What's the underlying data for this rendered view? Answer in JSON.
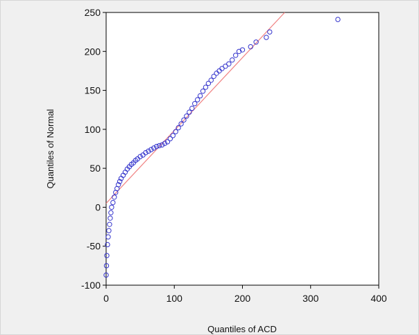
{
  "chart_data": {
    "type": "scatter",
    "title": "",
    "xlabel": "Quantiles of ACD",
    "ylabel": "Quantiles of Normal",
    "xlim": [
      0,
      400
    ],
    "ylim": [
      -100,
      250
    ],
    "xticks": [
      "0",
      "100",
      "200",
      "300",
      "400"
    ],
    "yticks": [
      "-100",
      "-50",
      "0",
      "50",
      "100",
      "150",
      "200",
      "250"
    ],
    "grid": false,
    "reference_line": {
      "x": [
        0,
        262
      ],
      "y": [
        5,
        250
      ],
      "color": "#f08080"
    },
    "marker_color": "#3333cc",
    "points": [
      [
        0,
        -87
      ],
      [
        0.5,
        -75
      ],
      [
        1,
        -62
      ],
      [
        2,
        -48
      ],
      [
        3,
        -38
      ],
      [
        4,
        -30
      ],
      [
        5,
        -22
      ],
      [
        6,
        -14
      ],
      [
        7,
        -7
      ],
      [
        8,
        0
      ],
      [
        10,
        6
      ],
      [
        12,
        13
      ],
      [
        14,
        19
      ],
      [
        16,
        24
      ],
      [
        18,
        29
      ],
      [
        20,
        33
      ],
      [
        22,
        37
      ],
      [
        25,
        41
      ],
      [
        28,
        45
      ],
      [
        31,
        49
      ],
      [
        34,
        52
      ],
      [
        37,
        55
      ],
      [
        40,
        57
      ],
      [
        43,
        60
      ],
      [
        46,
        62
      ],
      [
        50,
        65
      ],
      [
        54,
        67
      ],
      [
        58,
        70
      ],
      [
        62,
        72
      ],
      [
        66,
        74
      ],
      [
        70,
        76
      ],
      [
        74,
        78
      ],
      [
        78,
        79
      ],
      [
        82,
        80
      ],
      [
        86,
        82
      ],
      [
        90,
        84
      ],
      [
        94,
        88
      ],
      [
        98,
        92
      ],
      [
        102,
        97
      ],
      [
        106,
        102
      ],
      [
        110,
        107
      ],
      [
        114,
        112
      ],
      [
        118,
        117
      ],
      [
        122,
        122
      ],
      [
        126,
        127
      ],
      [
        130,
        133
      ],
      [
        134,
        138
      ],
      [
        138,
        143
      ],
      [
        142,
        149
      ],
      [
        146,
        154
      ],
      [
        150,
        159
      ],
      [
        154,
        163
      ],
      [
        158,
        168
      ],
      [
        162,
        172
      ],
      [
        166,
        175
      ],
      [
        170,
        178
      ],
      [
        175,
        181
      ],
      [
        180,
        184
      ],
      [
        185,
        189
      ],
      [
        190,
        195
      ],
      [
        195,
        200
      ],
      [
        200,
        202
      ],
      [
        212,
        206
      ],
      [
        220,
        212
      ],
      [
        235,
        218
      ],
      [
        240,
        225
      ],
      [
        340,
        241
      ]
    ]
  }
}
